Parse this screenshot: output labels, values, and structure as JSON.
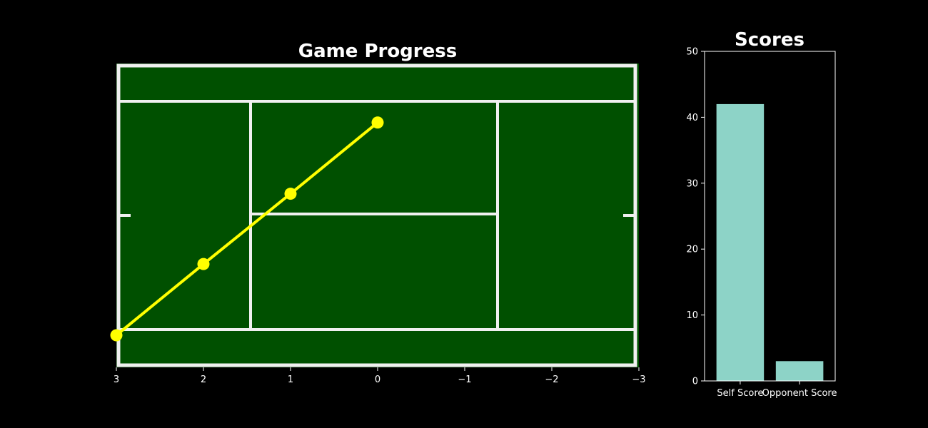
{
  "chart_data": [
    {
      "type": "line",
      "title": "Game Progress",
      "xlabel": "",
      "ylabel": "",
      "xlim": [
        3,
        -3
      ],
      "x_inverted": true,
      "x_ticks": [
        3,
        2,
        1,
        0,
        -1,
        -2,
        -3
      ],
      "x_tick_labels": [
        "3",
        "2",
        "1",
        "0",
        "−1",
        "−2",
        "−3"
      ],
      "y_ticks_shown": false,
      "grid": false,
      "background": "tennis court image",
      "series": [
        {
          "x": [
            3,
            2,
            1,
            0
          ],
          "y": [
            -0.53,
            0.29,
            1.1,
            1.92
          ],
          "color": "#ffff00",
          "marker": "circle"
        }
      ]
    },
    {
      "type": "bar",
      "title": "Scores",
      "xlabel": "",
      "ylabel": "",
      "categories": [
        "Self Score",
        "Opponent Score"
      ],
      "values": [
        42,
        3
      ],
      "ylim": [
        0,
        50
      ],
      "y_ticks": [
        0,
        10,
        20,
        30,
        40,
        50
      ],
      "y_tick_labels": [
        "0",
        "10",
        "20",
        "30",
        "40",
        "50"
      ],
      "color": "#8dd3c7",
      "grid": false
    }
  ],
  "colors": {
    "background": "#000000",
    "court": "#005000",
    "court_lines": "#f0f0f0",
    "series_line": "#ffff00",
    "bar": "#8dd3c7",
    "text": "#ffffff"
  }
}
